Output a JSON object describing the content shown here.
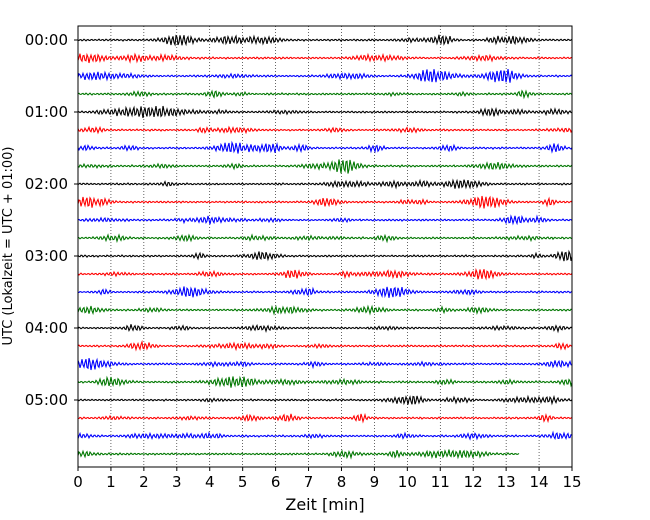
{
  "chart_data": {
    "type": "line",
    "subtype": "helicorder",
    "xlabel": "Zeit  [min]",
    "ylabel": "UTC (Lokalzeit = UTC + 01:00)",
    "xlim": [
      0,
      15
    ],
    "x_ticks": [
      "0",
      "1",
      "2",
      "3",
      "4",
      "5",
      "6",
      "7",
      "8",
      "9",
      "10",
      "11",
      "12",
      "13",
      "14",
      "15"
    ],
    "y_tick_labels": [
      "00:00",
      "01:00",
      "02:00",
      "03:00",
      "04:00",
      "05:00"
    ],
    "y_tick_rows": [
      0,
      4,
      8,
      12,
      16,
      20
    ],
    "rows_per_hour": 4,
    "minutes_per_row": 15,
    "row_count": 24,
    "last_row_end_min": 13.4,
    "grid": {
      "x": "dotted vertical lines at each minute",
      "y": "off"
    },
    "trace_colors": [
      "#000000",
      "#ff0000",
      "#0000ff",
      "#007700"
    ],
    "frame_color": "#000000"
  }
}
